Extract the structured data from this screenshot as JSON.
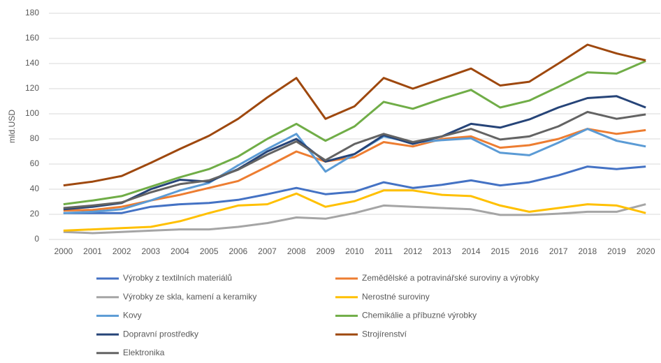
{
  "chart_data": {
    "type": "line",
    "y_label": "mld.USD",
    "categories": [
      "2000",
      "2001",
      "2002",
      "2003",
      "2004",
      "2005",
      "2006",
      "2007",
      "2008",
      "2009",
      "2010",
      "2011",
      "2012",
      "2013",
      "2014",
      "2015",
      "2016",
      "2017",
      "2018",
      "2019",
      "2020"
    ],
    "ylim": [
      0,
      180
    ],
    "yticks": [
      0,
      20,
      40,
      60,
      80,
      100,
      120,
      140,
      160,
      180
    ],
    "grid": true,
    "legend": "bottom",
    "series": [
      {
        "name": "Výrobky z textilních materiálů",
        "color": "#4472c4",
        "values": [
          21,
          21,
          21,
          26,
          28,
          29,
          31.5,
          36,
          41,
          36,
          38,
          45.5,
          41,
          43.5,
          47,
          43,
          45.5,
          51,
          58,
          56,
          58
        ]
      },
      {
        "name": "Zemědělské a potravinářské suroviny a výrobky",
        "color": "#ed7d31",
        "values": [
          23,
          23.5,
          26,
          31,
          35.5,
          41,
          46.5,
          58,
          70,
          62,
          65.5,
          77.5,
          74,
          80,
          82,
          73,
          75,
          80,
          88,
          84,
          87
        ]
      },
      {
        "name": "Výrobky ze skla, kamení a keramiky",
        "color": "#a5a5a5",
        "values": [
          6,
          5,
          6,
          7,
          8,
          8,
          10,
          13,
          17.5,
          16.5,
          21,
          27,
          26,
          25,
          24,
          19.5,
          19.5,
          20.5,
          22,
          22,
          28
        ]
      },
      {
        "name": "Nerostné suroviny",
        "color": "#ffc000",
        "values": [
          7,
          8,
          9,
          10,
          14.5,
          21,
          27,
          28,
          36.5,
          26,
          30.5,
          39,
          39,
          35.5,
          34.5,
          27,
          22,
          25,
          28,
          27,
          21
        ]
      },
      {
        "name": "Kovy",
        "color": "#5b9bd5",
        "values": [
          21,
          22,
          24,
          31,
          39,
          45,
          59,
          72,
          84,
          54,
          68,
          82,
          77,
          79,
          80.5,
          69,
          67,
          77,
          88,
          78.5,
          74
        ]
      },
      {
        "name": "Chemikálie a příbuzné výrobky",
        "color": "#70ad47",
        "values": [
          28,
          31,
          34.5,
          42,
          49.5,
          56,
          66,
          80,
          92,
          78.5,
          90,
          109.5,
          104,
          112,
          119,
          105,
          110.5,
          121.5,
          133,
          132,
          142
        ]
      },
      {
        "name": "Dopravní prostředky",
        "color": "#264478",
        "values": [
          24,
          26,
          29,
          40,
          47.5,
          46,
          56,
          70,
          80,
          62,
          68,
          83,
          76,
          82,
          92,
          89,
          95.5,
          105,
          112.5,
          114,
          105
        ]
      },
      {
        "name": "Strojírenství",
        "color": "#9e480e",
        "values": [
          43,
          46,
          50.5,
          61,
          72,
          82.5,
          96,
          113,
          128.5,
          96,
          106,
          128.5,
          120,
          128,
          136,
          122.5,
          125.5,
          140,
          155,
          148,
          142.5
        ]
      },
      {
        "name": "Elektronika",
        "color": "#636363",
        "values": [
          25,
          27,
          29.5,
          37.5,
          44,
          47,
          55.5,
          67.5,
          78,
          63,
          76,
          84,
          77.5,
          82,
          88,
          79.5,
          82,
          90,
          101.5,
          96,
          99.5
        ]
      }
    ]
  }
}
